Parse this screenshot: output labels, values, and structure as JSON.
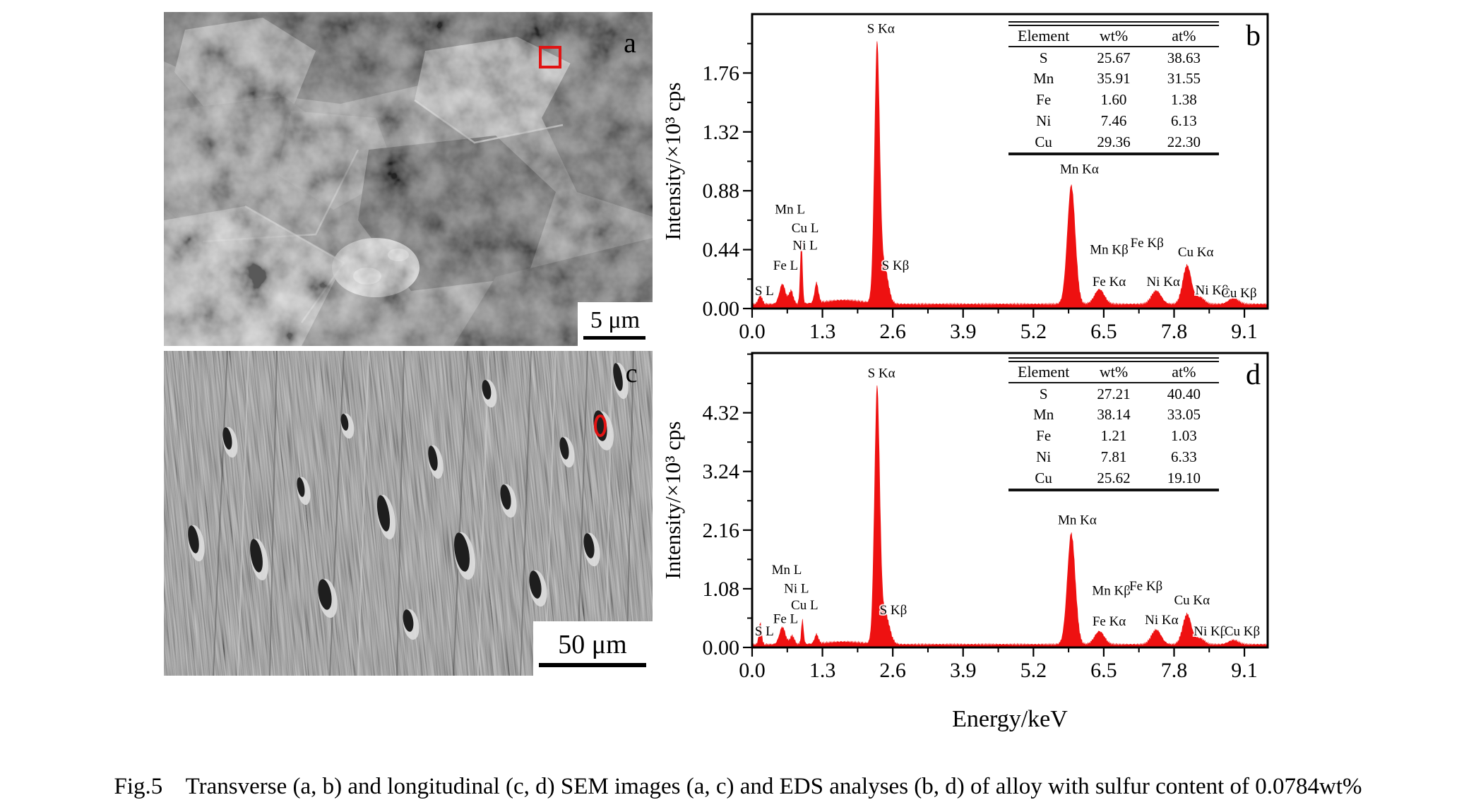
{
  "figure": {
    "caption": "Fig.5    Transverse (a, b) and longitudinal (c, d) SEM images (a, c) and EDS analyses (b, d) of alloy with sulfur content of 0.0784wt%",
    "accent_red": "#ee1111",
    "background": "#ffffff"
  },
  "sem_panels": [
    {
      "id": "a",
      "label": "a",
      "scale_bar": "5 μm",
      "marker": "red-box-analysis-spot"
    },
    {
      "id": "c",
      "label": "c",
      "scale_bar": "50 μm",
      "marker": "red-ellipse-analysis-spot"
    }
  ],
  "chart_data": [
    {
      "id": "b",
      "type": "area",
      "panel_label": "b",
      "ylabel": "Intensity/×10³ cps",
      "xlabel": null,
      "xlim": [
        0,
        9.53
      ],
      "ylim": [
        0,
        2.2
      ],
      "xticks": [
        0.0,
        1.3,
        2.6,
        3.9,
        5.2,
        6.5,
        7.8,
        9.1
      ],
      "xtick_labels": [
        "0.0",
        "1.3",
        "2.6",
        "3.9",
        "5.2",
        "6.5",
        "7.8",
        "9.1"
      ],
      "yticks": [
        0.0,
        0.44,
        0.88,
        1.32,
        1.76
      ],
      "ytick_labels": [
        "0.00",
        "0.44",
        "0.88",
        "1.32",
        "1.76"
      ],
      "x_minor_step": 0.65,
      "y_minor_step": 0.22,
      "grid": false,
      "color": "#ee1111",
      "baseline": 0.035,
      "noise_amp": 0.012,
      "peaks": [
        {
          "c": 0.15,
          "h": 0.07,
          "w": 0.035
        },
        {
          "c": 0.56,
          "h": 0.15,
          "w": 0.055
        },
        {
          "c": 0.72,
          "h": 0.1,
          "w": 0.04
        },
        {
          "c": 0.91,
          "h": 0.48,
          "w": 0.022
        },
        {
          "c": 1.19,
          "h": 0.15,
          "w": 0.035
        },
        {
          "c": 1.7,
          "h": 0.03,
          "w": 0.35
        },
        {
          "c": 2.31,
          "h": 1.93,
          "w": 0.05
        },
        {
          "c": 2.45,
          "h": 0.26,
          "w": 0.07
        },
        {
          "c": 5.9,
          "h": 0.89,
          "w": 0.075
        },
        {
          "c": 6.42,
          "h": 0.11,
          "w": 0.09
        },
        {
          "c": 7.47,
          "h": 0.1,
          "w": 0.09
        },
        {
          "c": 8.04,
          "h": 0.29,
          "w": 0.08
        },
        {
          "c": 8.28,
          "h": 0.05,
          "w": 0.08
        },
        {
          "c": 8.9,
          "h": 0.045,
          "w": 0.09
        }
      ],
      "peak_labels": [
        {
          "t": "S L",
          "x": 0.05,
          "y": 0.1,
          "a": "start"
        },
        {
          "t": "Fe L",
          "x": 0.62,
          "y": 0.29
        },
        {
          "t": "Ni L",
          "x": 0.98,
          "y": 0.44
        },
        {
          "t": "Cu L",
          "x": 0.98,
          "y": 0.57
        },
        {
          "t": "Mn L",
          "x": 0.7,
          "y": 0.71
        },
        {
          "t": "S Kβ",
          "x": 2.65,
          "y": 0.29
        },
        {
          "t": "S Kα",
          "x": 2.38,
          "y": 2.06
        },
        {
          "t": "Mn Kα",
          "x": 6.05,
          "y": 1.01
        },
        {
          "t": "Fe Kα",
          "x": 6.6,
          "y": 0.17
        },
        {
          "t": "Mn Kβ",
          "x": 6.6,
          "y": 0.41
        },
        {
          "t": "Fe Kβ",
          "x": 7.3,
          "y": 0.46
        },
        {
          "t": "Ni Kα",
          "x": 7.6,
          "y": 0.17
        },
        {
          "t": "Cu Kα",
          "x": 8.2,
          "y": 0.39
        },
        {
          "t": "Ni Kβ",
          "x": 8.5,
          "y": 0.105
        },
        {
          "t": "Cu Kβ",
          "x": 9.0,
          "y": 0.085
        }
      ],
      "table": {
        "headers": [
          "Element",
          "wt%",
          "at%"
        ],
        "rows": [
          [
            "S",
            "25.67",
            "38.63"
          ],
          [
            "Mn",
            "35.91",
            "31.55"
          ],
          [
            "Fe",
            "1.60",
            "1.38"
          ],
          [
            "Ni",
            "7.46",
            "6.13"
          ],
          [
            "Cu",
            "29.36",
            "22.30"
          ]
        ]
      }
    },
    {
      "id": "d",
      "type": "area",
      "panel_label": "d",
      "ylabel": "Intensity/×10³ cps",
      "xlabel": "Energy/keV",
      "xlim": [
        0,
        9.53
      ],
      "ylim": [
        0,
        5.42
      ],
      "xticks": [
        0.0,
        1.3,
        2.6,
        3.9,
        5.2,
        6.5,
        7.8,
        9.1
      ],
      "xtick_labels": [
        "0.0",
        "1.3",
        "2.6",
        "3.9",
        "5.2",
        "6.5",
        "7.8",
        "9.1"
      ],
      "yticks": [
        0.0,
        1.08,
        2.16,
        3.24,
        4.32
      ],
      "ytick_labels": [
        "0.00",
        "1.08",
        "2.16",
        "3.24",
        "4.32"
      ],
      "x_minor_step": 0.65,
      "y_minor_step": 0.54,
      "grid": false,
      "color": "#ee1111",
      "baseline": 0.06,
      "noise_amp": 0.028,
      "peaks": [
        {
          "c": 0.15,
          "h": 0.4,
          "w": 0.025
        },
        {
          "c": 0.56,
          "h": 0.32,
          "w": 0.055
        },
        {
          "c": 0.74,
          "h": 0.16,
          "w": 0.04
        },
        {
          "c": 0.93,
          "h": 0.45,
          "w": 0.022
        },
        {
          "c": 1.19,
          "h": 0.17,
          "w": 0.035
        },
        {
          "c": 1.7,
          "h": 0.05,
          "w": 0.35
        },
        {
          "c": 2.31,
          "h": 4.68,
          "w": 0.05
        },
        {
          "c": 2.46,
          "h": 0.55,
          "w": 0.08
        },
        {
          "c": 5.9,
          "h": 2.05,
          "w": 0.075
        },
        {
          "c": 6.42,
          "h": 0.24,
          "w": 0.09
        },
        {
          "c": 7.47,
          "h": 0.27,
          "w": 0.09
        },
        {
          "c": 8.04,
          "h": 0.56,
          "w": 0.08
        },
        {
          "c": 8.28,
          "h": 0.11,
          "w": 0.08
        },
        {
          "c": 8.9,
          "h": 0.08,
          "w": 0.09
        }
      ],
      "peak_labels": [
        {
          "t": "S L",
          "x": 0.05,
          "y": 0.22,
          "a": "start"
        },
        {
          "t": "Fe L",
          "x": 0.62,
          "y": 0.45
        },
        {
          "t": "Cu L",
          "x": 0.97,
          "y": 0.7
        },
        {
          "t": "Ni L",
          "x": 0.82,
          "y": 1.01
        },
        {
          "t": "Mn L",
          "x": 0.64,
          "y": 1.35
        },
        {
          "t": "S Kβ",
          "x": 2.61,
          "y": 0.61
        },
        {
          "t": "S Kα",
          "x": 2.39,
          "y": 4.97
        },
        {
          "t": "Mn Kα",
          "x": 6.01,
          "y": 2.27
        },
        {
          "t": "Mn Kβ",
          "x": 6.64,
          "y": 0.97
        },
        {
          "t": "Fe Kβ",
          "x": 7.28,
          "y": 1.05
        },
        {
          "t": "Fe Kα",
          "x": 6.6,
          "y": 0.4
        },
        {
          "t": "Ni Kα",
          "x": 7.57,
          "y": 0.43
        },
        {
          "t": "Cu Kα",
          "x": 8.13,
          "y": 0.79
        },
        {
          "t": "Ni Kβ",
          "x": 8.47,
          "y": 0.22
        },
        {
          "t": "Cu Kβ",
          "x": 9.06,
          "y": 0.22
        }
      ],
      "table": {
        "headers": [
          "Element",
          "wt%",
          "at%"
        ],
        "rows": [
          [
            "S",
            "27.21",
            "40.40"
          ],
          [
            "Mn",
            "38.14",
            "33.05"
          ],
          [
            "Fe",
            "1.21",
            "1.03"
          ],
          [
            "Ni",
            "7.81",
            "6.33"
          ],
          [
            "Cu",
            "25.62",
            "19.10"
          ]
        ]
      }
    }
  ]
}
